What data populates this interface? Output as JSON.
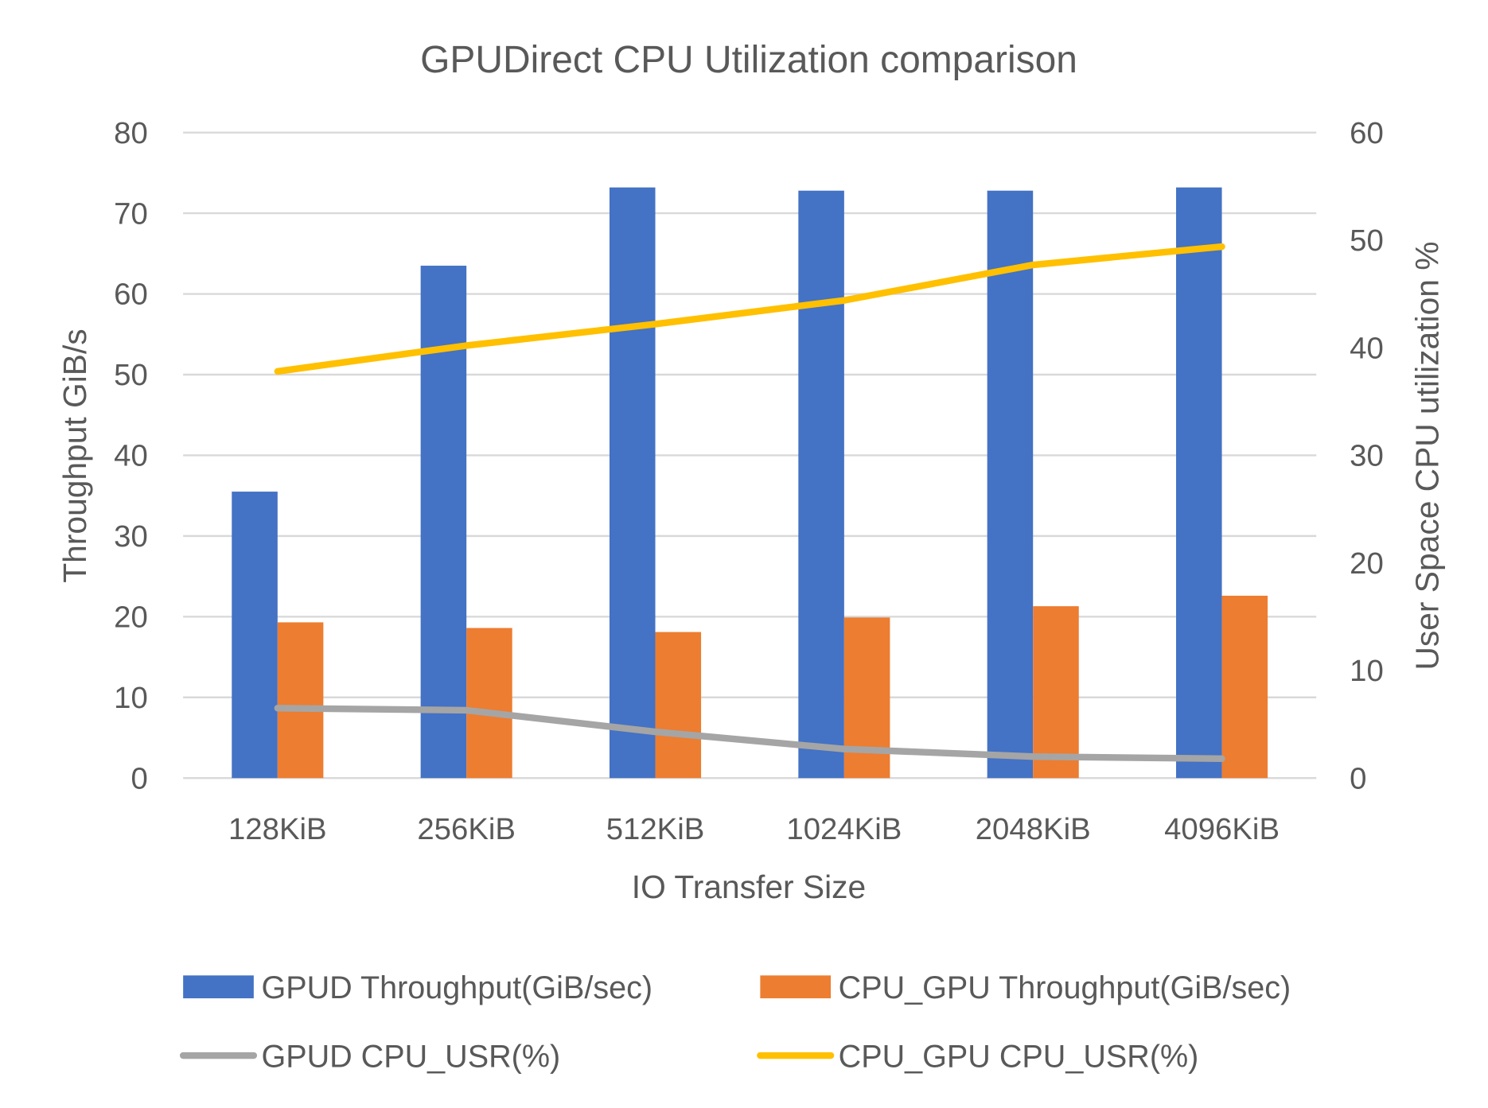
{
  "chart_data": {
    "type": "bar",
    "title": "GPUDirect CPU Utilization comparison",
    "xlabel": "IO Transfer Size",
    "ylabel": "Throughput GiB/s",
    "y2label": "User Space CPU utilization %",
    "categories": [
      "128KiB",
      "256KiB",
      "512KiB",
      "1024KiB",
      "2048KiB",
      "4096KiB"
    ],
    "ylim": [
      0,
      80
    ],
    "yticks": [
      0,
      10,
      20,
      30,
      40,
      50,
      60,
      70,
      80
    ],
    "y2lim": [
      0,
      60
    ],
    "y2ticks": [
      0,
      10,
      20,
      30,
      40,
      50,
      60
    ],
    "grid": true,
    "legend_placement": "bottom",
    "series": [
      {
        "name": "GPUD Throughput(GiB/sec)",
        "type": "bar",
        "axis": "left",
        "color": "#4472C4",
        "values": [
          35.5,
          63.5,
          73.2,
          72.8,
          72.8,
          73.2
        ]
      },
      {
        "name": "CPU_GPU Throughput(GiB/sec)",
        "type": "bar",
        "axis": "left",
        "color": "#ED7D31",
        "values": [
          19.3,
          18.6,
          18.1,
          19.9,
          21.3,
          22.6
        ]
      },
      {
        "name": "GPUD CPU_USR(%)",
        "type": "line",
        "axis": "right",
        "color": "#A5A5A5",
        "values": [
          6.5,
          6.3,
          4.3,
          2.7,
          2.0,
          1.8
        ]
      },
      {
        "name": "CPU_GPU CPU_USR(%)",
        "type": "line",
        "axis": "right",
        "color": "#FFC000",
        "values": [
          37.8,
          40.2,
          42.2,
          44.4,
          47.7,
          49.4
        ]
      }
    ]
  }
}
